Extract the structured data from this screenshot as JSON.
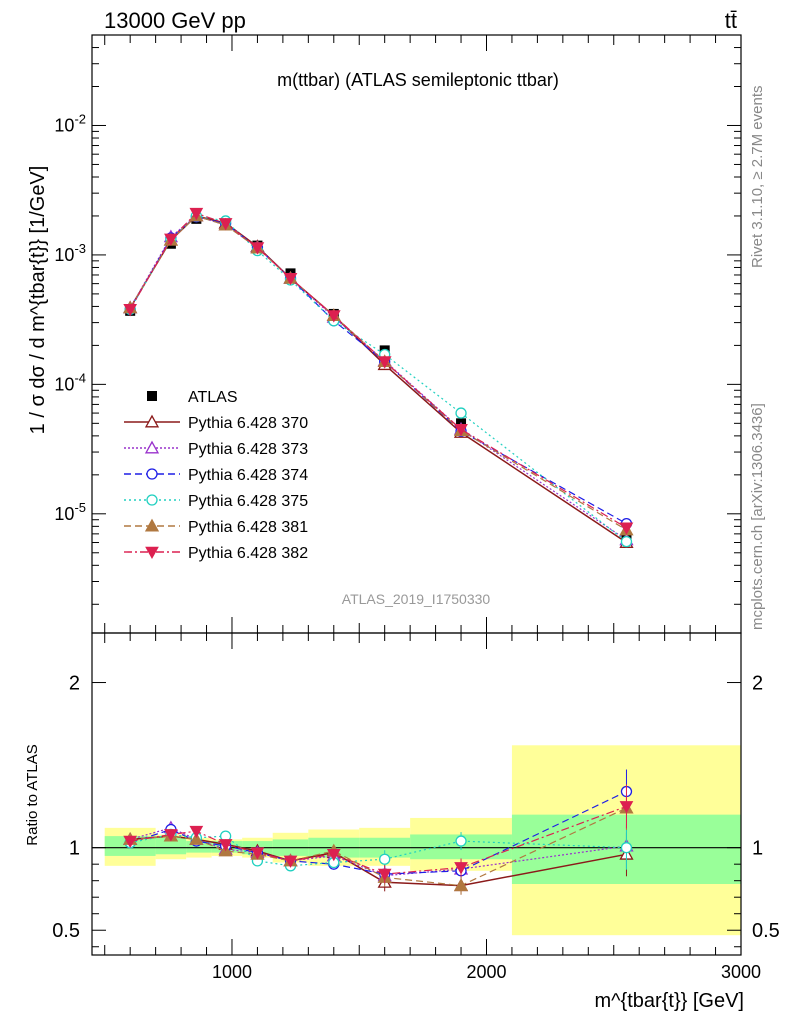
{
  "header": {
    "energy_label": "13000 GeV pp",
    "process_label": "tt̄"
  },
  "side_labels": {
    "rivet": "Rivet 3.1.10, ≥ 2.7M events",
    "mcplots": "mcplots.cern.ch [arXiv:1306.3436]"
  },
  "chart_data": [
    {
      "type": "line",
      "title": "m(ttbar) (ATLAS semileptonic ttbar)",
      "watermark": "ATLAS_2019_I1750330",
      "ylabel": "1 / σ dσ / d m^{tbar{t}} [1/GeV]",
      "yscale": "log",
      "xlim": [
        450,
        3000
      ],
      "ylim": [
        1.2e-06,
        0.05
      ],
      "ytick_labels": [
        "10^{-5}",
        "10^{-4}",
        "10^{-3}",
        "10^{-2}"
      ],
      "x": [
        600,
        760,
        860,
        975,
        1100,
        1230,
        1400,
        1600,
        1900,
        2550
      ],
      "legend_position": "left",
      "series": [
        {
          "name": "ATLAS",
          "color": "#000000",
          "marker": "square",
          "values": [
            0.00037,
            0.00122,
            0.0019,
            0.00173,
            0.00118,
            0.00072,
            0.00035,
            0.000183,
            5e-05,
            6.3e-06
          ]
        },
        {
          "name": "Pythia 6.428 370",
          "color": "#8b1a1a",
          "marker": "triangle-open",
          "values": [
            0.00039,
            0.0013,
            0.002,
            0.00176,
            0.00116,
            0.00066,
            0.00034,
            0.000142,
            4.25e-05,
            6e-06
          ]
        },
        {
          "name": "Pythia 6.428 373",
          "color": "#9932cc",
          "marker": "triangle-open",
          "values": [
            0.00039,
            0.00138,
            0.002,
            0.0017,
            0.00114,
            0.00066,
            0.00033,
            0.000152,
            4.5e-05,
            6.3e-06
          ]
        },
        {
          "name": "Pythia 6.428 374",
          "color": "#1e1ee6",
          "marker": "circle-open",
          "values": [
            0.00038,
            0.00135,
            0.00197,
            0.00175,
            0.00114,
            0.00066,
            0.00031,
            0.00015,
            4.35e-05,
            8.4e-06
          ]
        },
        {
          "name": "Pythia 6.428 375",
          "color": "#20d0c0",
          "marker": "circle-open",
          "values": [
            0.00038,
            0.00132,
            0.002,
            0.00183,
            0.00108,
            0.00064,
            0.00031,
            0.00017,
            6e-05,
            6.1e-06
          ]
        },
        {
          "name": "Pythia 6.428 381",
          "color": "#b07840",
          "marker": "triangle",
          "values": [
            0.00039,
            0.0013,
            0.002,
            0.0017,
            0.00113,
            0.00066,
            0.00034,
            0.00015,
            4.4e-05,
            7.5e-06
          ]
        },
        {
          "name": "Pythia 6.428 382",
          "color": "#dc2050",
          "marker": "triangle-down",
          "values": [
            0.00038,
            0.00133,
            0.0021,
            0.00175,
            0.00114,
            0.00066,
            0.00034,
            0.00015,
            4.5e-05,
            7.8e-06
          ]
        }
      ]
    },
    {
      "type": "line",
      "ylabel": "Ratio to ATLAS",
      "xlabel": "m^{tbar{t}} [GeV]",
      "xlim": [
        450,
        3000
      ],
      "ylim": [
        0.35,
        2.3
      ],
      "ytick_labels": [
        "0.5",
        "1",
        "2"
      ],
      "xtick_labels": [
        "1000",
        "2000",
        "3000"
      ],
      "bands": [
        {
          "x_low": 500,
          "x_high": 700,
          "inner": [
            0.95,
            1.07
          ],
          "outer": [
            0.89,
            1.12
          ]
        },
        {
          "x_low": 700,
          "x_high": 820,
          "inner": [
            0.96,
            1.06
          ],
          "outer": [
            0.93,
            1.08
          ]
        },
        {
          "x_low": 820,
          "x_high": 920,
          "inner": [
            0.97,
            1.04
          ],
          "outer": [
            0.94,
            1.06
          ]
        },
        {
          "x_low": 920,
          "x_high": 1040,
          "inner": [
            0.97,
            1.04
          ],
          "outer": [
            0.95,
            1.05
          ]
        },
        {
          "x_low": 1040,
          "x_high": 1160,
          "inner": [
            0.96,
            1.04
          ],
          "outer": [
            0.94,
            1.06
          ]
        },
        {
          "x_low": 1160,
          "x_high": 1300,
          "inner": [
            0.95,
            1.05
          ],
          "outer": [
            0.91,
            1.09
          ]
        },
        {
          "x_low": 1300,
          "x_high": 1500,
          "inner": [
            0.94,
            1.06
          ],
          "outer": [
            0.89,
            1.11
          ]
        },
        {
          "x_low": 1500,
          "x_high": 1700,
          "inner": [
            0.94,
            1.06
          ],
          "outer": [
            0.89,
            1.12
          ]
        },
        {
          "x_low": 1700,
          "x_high": 2100,
          "inner": [
            0.93,
            1.08
          ],
          "outer": [
            0.86,
            1.18
          ]
        },
        {
          "x_low": 2100,
          "x_high": 3000,
          "inner": [
            0.78,
            1.2
          ],
          "outer": [
            0.47,
            1.62
          ]
        }
      ],
      "reference_line": 1,
      "series": [
        {
          "name": "Pythia 6.428 370",
          "values": [
            1.05,
            1.07,
            1.05,
            1.02,
            0.98,
            0.92,
            0.97,
            0.79,
            0.77,
            0.96
          ]
        },
        {
          "name": "Pythia 6.428 373",
          "values": [
            1.05,
            1.12,
            1.05,
            0.99,
            0.97,
            0.92,
            0.95,
            0.83,
            0.87,
            1.01
          ]
        },
        {
          "name": "Pythia 6.428 374",
          "values": [
            1.03,
            1.11,
            1.04,
            1.01,
            0.97,
            0.92,
            0.9,
            0.84,
            0.86,
            1.34
          ]
        },
        {
          "name": "Pythia 6.428 375",
          "values": [
            1.03,
            1.08,
            1.06,
            1.07,
            0.92,
            0.89,
            0.91,
            0.93,
            1.04,
            1.0
          ]
        },
        {
          "name": "Pythia 6.428 381",
          "values": [
            1.05,
            1.07,
            1.05,
            0.98,
            0.96,
            0.92,
            0.98,
            0.82,
            0.77,
            1.24
          ]
        },
        {
          "name": "Pythia 6.428 382",
          "values": [
            1.04,
            1.08,
            1.1,
            1.02,
            0.97,
            0.92,
            0.96,
            0.84,
            0.88,
            1.25
          ]
        }
      ]
    }
  ]
}
